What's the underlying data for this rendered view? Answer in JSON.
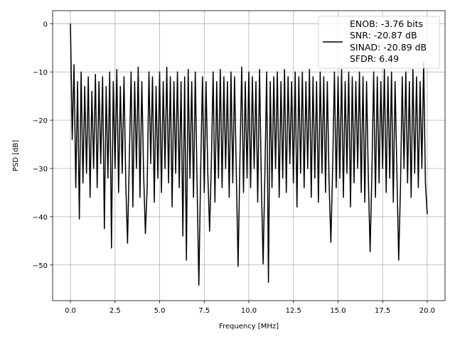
{
  "chart_data": {
    "type": "line",
    "title": "",
    "xlabel": "Frequency [MHz]",
    "ylabel": "PSD [dB]",
    "xlim": [
      -1.0,
      21.0
    ],
    "ylim": [
      -57.4,
      2.7
    ],
    "xticks": [
      "0.0",
      "2.5",
      "5.0",
      "7.5",
      "10.0",
      "12.5",
      "15.0",
      "17.5",
      "20.0"
    ],
    "xtick_values": [
      0,
      2.5,
      5,
      7.5,
      10,
      12.5,
      15,
      17.5,
      20
    ],
    "yticks": [
      "0",
      "−10",
      "−20",
      "−30",
      "−40",
      "−50"
    ],
    "ytick_values": [
      0,
      -10,
      -20,
      -30,
      -40,
      -50
    ],
    "grid": true,
    "legend_placement": "upper right",
    "legend_lines": [
      "ENOB: -3.76 bits",
      "SNR: -20.87 dB",
      "SINAD: -20.89 dB",
      "SFDR: 6.49"
    ],
    "line_color": "#000000",
    "x_start": 0.0,
    "x_step": 0.1,
    "y": [
      0,
      -24,
      -8.5,
      -34,
      -12,
      -40.5,
      -10,
      -33,
      -13,
      -31,
      -11,
      -36,
      -14,
      -30,
      -10.5,
      -34,
      -12,
      -29,
      -11,
      -42.5,
      -13,
      -32,
      -10,
      -46.5,
      -12,
      -30,
      -9.5,
      -35,
      -13,
      -31,
      -11,
      -33,
      -45.5,
      -28,
      -10,
      -38,
      -12,
      -30,
      -9,
      -36,
      -12,
      -31,
      -43.5,
      -34,
      -10,
      -29,
      -11,
      -37,
      -13,
      -32,
      -10,
      -35,
      -12,
      -30,
      -9,
      -33,
      -11,
      -38,
      -12,
      -31,
      -10,
      -34,
      -12,
      -44,
      -11,
      -49,
      -9.5,
      -32,
      -12,
      -36,
      -10,
      -33,
      -54.2,
      -30,
      -11,
      -35,
      -12,
      -31,
      -43,
      -29,
      -10,
      -37,
      -12,
      -32,
      -9.5,
      -34,
      -11,
      -30,
      -12,
      -36,
      -10,
      -33,
      -11,
      -31,
      -50.3,
      -28,
      -9,
      -35,
      -12,
      -32,
      -10,
      -34,
      -11,
      -30,
      -12,
      -37,
      -9.5,
      -33,
      -49.8,
      -31,
      -10,
      -53.6,
      -12,
      -34,
      -11,
      -30,
      -10,
      -36,
      -12,
      -32,
      -9.5,
      -35,
      -11,
      -29,
      -12,
      -33,
      -10,
      -38,
      -11,
      -31,
      -10,
      -34,
      -12,
      -30,
      -9.5,
      -36,
      -11,
      -32,
      -12,
      -37,
      -10,
      -31,
      -11,
      -35,
      -12,
      -33,
      -45.3,
      -30,
      -10,
      -34,
      -11,
      -32,
      -9.5,
      -36,
      -12,
      -31,
      -10,
      -38,
      -11,
      -33,
      -12,
      -30,
      -10,
      -35,
      -11,
      -37,
      -12,
      -32,
      -47.3,
      -31,
      -10,
      -36,
      -11,
      -33,
      -12,
      -30,
      -9.5,
      -35,
      -11,
      -32,
      -10,
      -37,
      -12,
      -31,
      -49,
      -34,
      -11,
      -30,
      -10,
      -33,
      -12,
      -36,
      -9.5,
      -31,
      -11,
      -34,
      -12,
      -30,
      -8,
      -33,
      -39.5
    ]
  }
}
